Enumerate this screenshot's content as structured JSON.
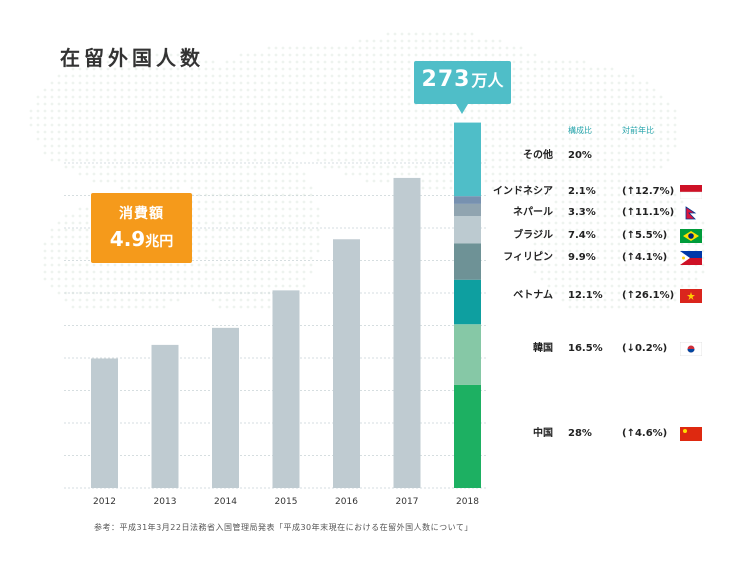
{
  "title": "在留外国人数",
  "total_callout": {
    "value": "273",
    "unit": "万人"
  },
  "consumption": {
    "label": "消費額",
    "value": "4.9",
    "unit": "兆円"
  },
  "source": "参考：平成31年3月22日法務省入国管理局発表「平成30年末現在における在留外国人数について」",
  "table_headers": {
    "share": "構成比",
    "yoy": "対前年比"
  },
  "colors": {
    "bar": "#bfcbd1",
    "accent_teal": "#4fbec8",
    "orange": "#f59a1b"
  },
  "chart_data": {
    "type": "bar",
    "categories": [
      "2012",
      "2013",
      "2014",
      "2015",
      "2016",
      "2017",
      "2018"
    ],
    "values": [
      203,
      207,
      212,
      223,
      238,
      256,
      273
    ],
    "ylim": [
      165,
      273
    ],
    "stacked_last_bar": [
      {
        "name": "中国",
        "share": 28,
        "share_label": "28%",
        "yoy": "(↑4.6%)",
        "color": "#1db062",
        "flag": "CN"
      },
      {
        "name": "韓国",
        "share": 16.5,
        "share_label": "16.5%",
        "yoy": "(↓0.2%)",
        "color": "#86c8a6",
        "flag": "KR"
      },
      {
        "name": "ベトナム",
        "share": 12.1,
        "share_label": "12.1%",
        "yoy": "(↑26.1%)",
        "color": "#0e9fa0",
        "flag": "VN"
      },
      {
        "name": "フィリピン",
        "share": 9.9,
        "share_label": "9.9%",
        "yoy": "(↑4.1%)",
        "color": "#6e9296",
        "flag": "PH"
      },
      {
        "name": "ブラジル",
        "share": 7.4,
        "share_label": "7.4%",
        "yoy": "(↑5.5%)",
        "color": "#bccad0",
        "flag": "BR"
      },
      {
        "name": "ネパール",
        "share": 3.3,
        "share_label": "3.3%",
        "yoy": "(↑11.1%)",
        "color": "#90a4b0",
        "flag": "NP"
      },
      {
        "name": "インドネシア",
        "share": 2.1,
        "share_label": "2.1%",
        "yoy": "(↑12.7%)",
        "color": "#7791b0",
        "flag": "ID"
      },
      {
        "name": "その他",
        "share": 20,
        "share_label": "20%",
        "yoy": "",
        "color": "#4fbec8",
        "flag": ""
      }
    ]
  }
}
